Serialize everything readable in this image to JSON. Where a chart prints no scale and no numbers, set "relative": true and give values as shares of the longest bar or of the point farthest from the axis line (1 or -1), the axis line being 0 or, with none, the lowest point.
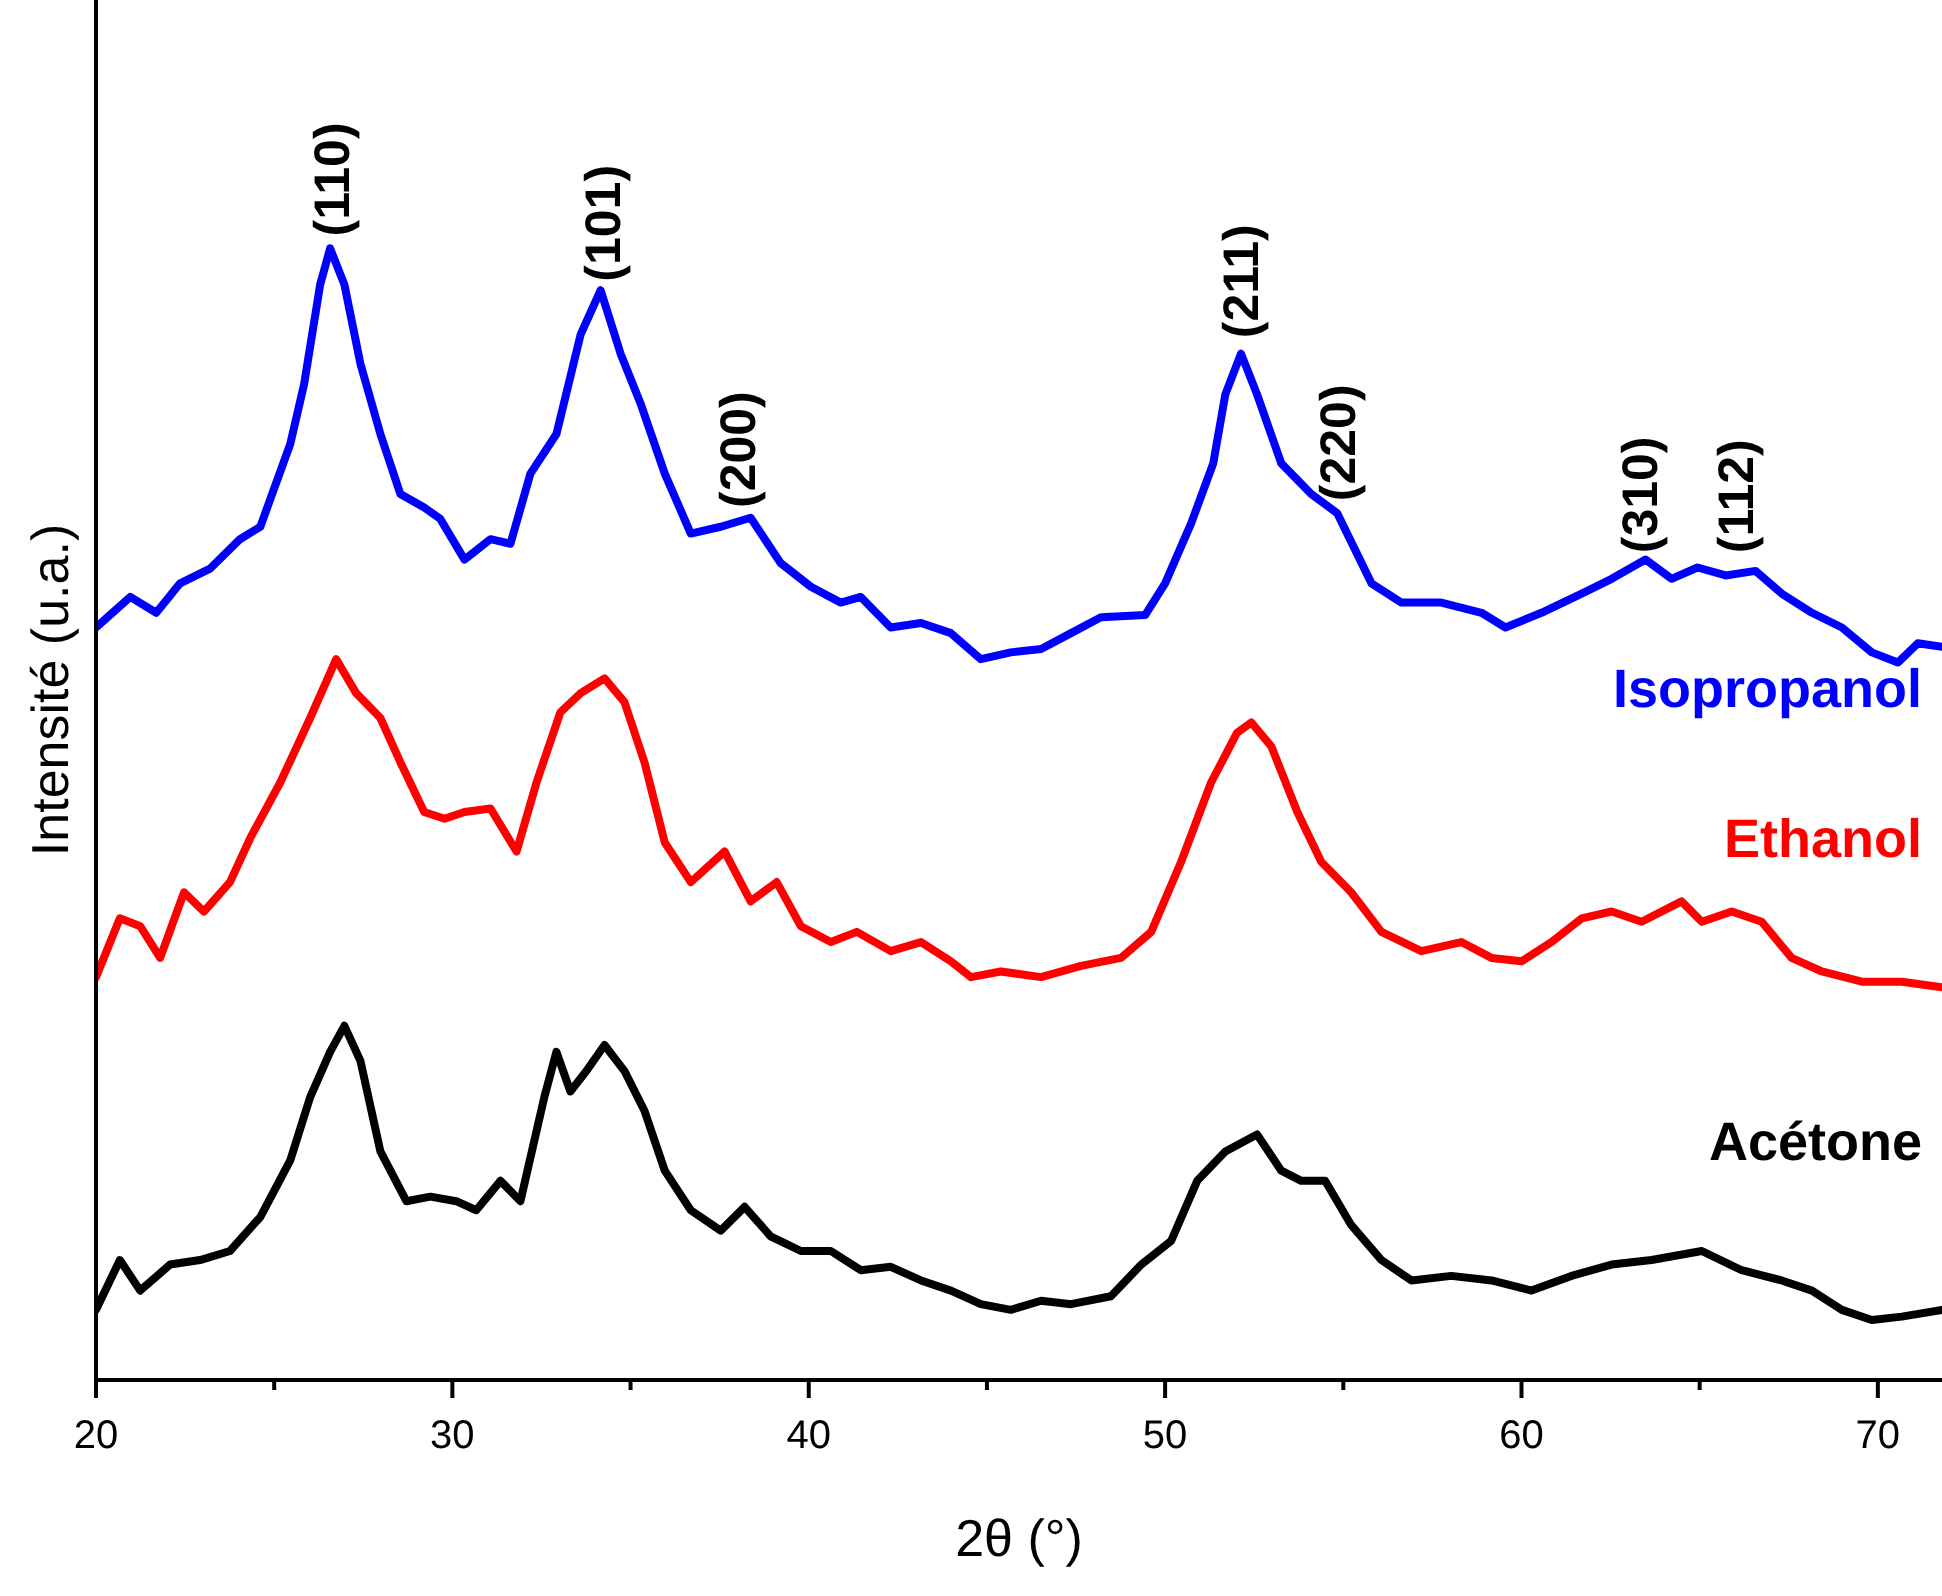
{
  "chart_data": {
    "type": "line",
    "relative": true,
    "xlabel": "2θ (°)",
    "ylabel": "Intensité (u.a.)",
    "xlim": [
      20,
      71.8
    ],
    "xticks": [
      20,
      {
        "value": 25,
        "label": null
      },
      30,
      {
        "value": 35,
        "label": null
      },
      40,
      {
        "value": 45,
        "label": null
      },
      50,
      {
        "value": 55,
        "label": null
      },
      60,
      {
        "value": 65,
        "label": null
      },
      70
    ],
    "grid": false,
    "line_style": "solid",
    "series": [
      {
        "name": "Isopropanol",
        "color": "#0000ff",
        "x": [
          20.0,
          20.96,
          21.69,
          22.36,
          23.2,
          24.04,
          24.61,
          25.45,
          25.84,
          26.29,
          26.57,
          26.97,
          27.42,
          27.98,
          28.54,
          29.21,
          29.66,
          30.34,
          31.07,
          31.63,
          32.19,
          32.92,
          33.6,
          34.16,
          34.72,
          35.28,
          35.96,
          36.69,
          37.53,
          38.37,
          39.21,
          40.06,
          40.9,
          41.46,
          42.3,
          43.15,
          43.99,
          44.83,
          45.67,
          46.52,
          47.36,
          48.2,
          49.44,
          50.0,
          50.73,
          51.35,
          51.69,
          52.13,
          52.58,
          53.26,
          54.1,
          54.83,
          55.79,
          56.63,
          57.75,
          58.88,
          59.55,
          60.56,
          61.69,
          62.53,
          63.48,
          64.21,
          64.94,
          65.73,
          66.57,
          67.3,
          68.15,
          68.99,
          69.83,
          70.56,
          71.12,
          71.8
        ],
        "values": [
          0.665,
          0.692,
          0.678,
          0.704,
          0.717,
          0.743,
          0.754,
          0.827,
          0.88,
          0.968,
          1.0,
          0.968,
          0.898,
          0.836,
          0.783,
          0.771,
          0.761,
          0.725,
          0.743,
          0.739,
          0.801,
          0.836,
          0.924,
          0.963,
          0.907,
          0.863,
          0.801,
          0.748,
          0.754,
          0.762,
          0.722,
          0.701,
          0.687,
          0.692,
          0.665,
          0.669,
          0.66,
          0.637,
          0.643,
          0.646,
          0.66,
          0.674,
          0.676,
          0.704,
          0.757,
          0.81,
          0.871,
          0.907,
          0.871,
          0.81,
          0.783,
          0.766,
          0.704,
          0.687,
          0.687,
          0.678,
          0.665,
          0.678,
          0.695,
          0.708,
          0.725,
          0.708,
          0.718,
          0.711,
          0.715,
          0.695,
          0.678,
          0.665,
          0.643,
          0.634,
          0.651,
          0.648
        ]
      },
      {
        "name": "Ethanol",
        "color": "#ff0000",
        "x": [
          20.0,
          20.67,
          21.24,
          21.8,
          22.47,
          23.03,
          23.76,
          24.33,
          25.17,
          26.01,
          26.74,
          27.3,
          27.98,
          28.54,
          29.21,
          29.78,
          30.34,
          31.07,
          31.8,
          32.36,
          33.03,
          33.6,
          34.27,
          34.83,
          35.39,
          35.96,
          36.69,
          37.64,
          38.37,
          39.1,
          39.78,
          40.62,
          41.35,
          42.3,
          43.15,
          43.99,
          44.55,
          45.39,
          46.52,
          47.64,
          48.76,
          49.61,
          50.45,
          51.29,
          52.02,
          52.42,
          52.98,
          53.71,
          54.38,
          55.22,
          56.07,
          57.19,
          58.31,
          59.16,
          60.0,
          60.84,
          61.69,
          62.53,
          63.37,
          64.49,
          65.06,
          65.9,
          66.74,
          67.58,
          68.43,
          69.55,
          70.67,
          71.8
        ],
        "values": [
          0.356,
          0.408,
          0.401,
          0.373,
          0.431,
          0.414,
          0.44,
          0.479,
          0.528,
          0.585,
          0.637,
          0.607,
          0.585,
          0.546,
          0.502,
          0.496,
          0.502,
          0.505,
          0.467,
          0.528,
          0.59,
          0.607,
          0.62,
          0.599,
          0.546,
          0.475,
          0.44,
          0.467,
          0.423,
          0.44,
          0.401,
          0.387,
          0.396,
          0.379,
          0.387,
          0.37,
          0.356,
          0.361,
          0.356,
          0.366,
          0.373,
          0.396,
          0.458,
          0.528,
          0.572,
          0.581,
          0.56,
          0.502,
          0.458,
          0.431,
          0.396,
          0.379,
          0.387,
          0.373,
          0.37,
          0.387,
          0.408,
          0.414,
          0.405,
          0.423,
          0.405,
          0.414,
          0.405,
          0.373,
          0.361,
          0.352,
          0.352,
          0.347
        ]
      },
      {
        "name": "Acétone",
        "color": "#000000",
        "x": [
          20.0,
          20.67,
          21.24,
          22.08,
          22.92,
          23.76,
          24.61,
          25.45,
          26.01,
          26.57,
          26.97,
          27.42,
          27.98,
          28.71,
          29.38,
          30.11,
          30.67,
          31.35,
          31.91,
          32.58,
          32.92,
          33.31,
          33.76,
          34.27,
          34.83,
          35.39,
          35.96,
          36.69,
          37.53,
          38.2,
          38.93,
          39.78,
          40.62,
          41.46,
          42.3,
          43.15,
          43.99,
          44.83,
          45.67,
          46.52,
          47.36,
          48.48,
          49.33,
          50.17,
          50.9,
          51.69,
          52.58,
          53.26,
          53.82,
          54.49,
          55.22,
          56.07,
          56.91,
          58.03,
          59.16,
          60.28,
          61.4,
          62.53,
          63.65,
          65.06,
          66.18,
          67.3,
          68.15,
          68.99,
          69.83,
          70.67,
          71.8
        ],
        "values": [
          0.062,
          0.106,
          0.079,
          0.102,
          0.106,
          0.114,
          0.144,
          0.194,
          0.25,
          0.29,
          0.313,
          0.282,
          0.202,
          0.158,
          0.162,
          0.158,
          0.15,
          0.176,
          0.158,
          0.25,
          0.29,
          0.255,
          0.273,
          0.296,
          0.273,
          0.238,
          0.185,
          0.15,
          0.132,
          0.153,
          0.127,
          0.114,
          0.114,
          0.097,
          0.1,
          0.088,
          0.079,
          0.067,
          0.062,
          0.07,
          0.067,
          0.074,
          0.102,
          0.123,
          0.176,
          0.202,
          0.217,
          0.185,
          0.176,
          0.176,
          0.137,
          0.106,
          0.088,
          0.092,
          0.088,
          0.079,
          0.092,
          0.102,
          0.106,
          0.114,
          0.097,
          0.088,
          0.079,
          0.062,
          0.053,
          0.056,
          0.062
        ]
      }
    ],
    "annotations": [
      {
        "text": "(110)",
        "x": 26.6,
        "y": 1.0
      },
      {
        "text": "(101)",
        "x": 34.2,
        "y": 0.96
      },
      {
        "text": "(200)",
        "x": 38.0,
        "y": 0.76
      },
      {
        "text": "(211)",
        "x": 52.1,
        "y": 0.91
      },
      {
        "text": "(220)",
        "x": 54.83,
        "y": 0.766
      },
      {
        "text": "(310)",
        "x": 63.3,
        "y": 0.72
      },
      {
        "text": "(112)",
        "x": 66.0,
        "y": 0.72
      }
    ]
  }
}
